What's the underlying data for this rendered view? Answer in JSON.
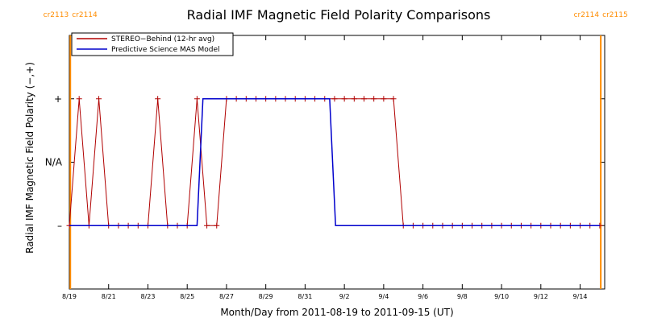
{
  "chart_data": {
    "type": "line",
    "title": "Radial IMF Magnetic Field Polarity Comparisons",
    "xlabel": "Month/Day from 2011-08-19 to 2011-09-15 (UT)",
    "ylabel": "Radial IMF Magnetic Field Polarity (−,+)",
    "xlim": [
      0,
      27.25
    ],
    "x_unit": "days from 2011-08-19 00:00 UT",
    "ylim": [
      -2,
      2
    ],
    "y_ticks": [
      {
        "value": 1,
        "label": "+"
      },
      {
        "value": 0,
        "label": "N/A"
      },
      {
        "value": -1,
        "label": "–"
      }
    ],
    "x_ticks": [
      {
        "value": 0,
        "label": "8/19"
      },
      {
        "value": 2,
        "label": "8/21"
      },
      {
        "value": 4,
        "label": "8/23"
      },
      {
        "value": 6,
        "label": "8/25"
      },
      {
        "value": 8,
        "label": "8/27"
      },
      {
        "value": 10,
        "label": "8/29"
      },
      {
        "value": 12,
        "label": "8/31"
      },
      {
        "value": 14,
        "label": "9/2"
      },
      {
        "value": 16,
        "label": "9/4"
      },
      {
        "value": 18,
        "label": "9/6"
      },
      {
        "value": 20,
        "label": "9/8"
      },
      {
        "value": 22,
        "label": "9/10"
      },
      {
        "value": 24,
        "label": "9/12"
      },
      {
        "value": 26,
        "label": "9/14"
      }
    ],
    "grid": false,
    "legend_position": "top-left",
    "series": [
      {
        "name": "STEREO−Behind (12-hr avg)",
        "color": "#b00000",
        "marker": "plus",
        "x": [
          0,
          0.5,
          1.0,
          1.5,
          2.0,
          2.5,
          3.0,
          3.5,
          4.0,
          4.5,
          5.0,
          5.5,
          6.0,
          6.5,
          7.0,
          7.5,
          8.0,
          8.5,
          9.0,
          9.5,
          10.0,
          10.5,
          11.0,
          11.5,
          12.0,
          12.5,
          13.0,
          13.5,
          14.0,
          14.5,
          15.0,
          15.5,
          16.0,
          16.5,
          17.0,
          17.5,
          18.0,
          18.5,
          19.0,
          19.5,
          20.0,
          20.5,
          21.0,
          21.5,
          22.0,
          22.5,
          23.0,
          23.5,
          24.0,
          24.5,
          25.0,
          25.5,
          26.0,
          26.5,
          27.0
        ],
        "y": [
          -1,
          1,
          -1,
          1,
          -1,
          -1,
          -1,
          -1,
          -1,
          1,
          -1,
          -1,
          -1,
          1,
          -1,
          -1,
          1,
          1,
          1,
          1,
          1,
          1,
          1,
          1,
          1,
          1,
          1,
          1,
          1,
          1,
          1,
          1,
          1,
          1,
          -1,
          -1,
          -1,
          -1,
          -1,
          -1,
          -1,
          -1,
          -1,
          -1,
          -1,
          -1,
          -1,
          -1,
          -1,
          -1,
          -1,
          -1,
          -1,
          -1,
          -1
        ]
      },
      {
        "name": "Predictive Science MAS Model",
        "color": "#0000cc",
        "marker": "none",
        "x": [
          0,
          6.5,
          6.8,
          13.25,
          13.55,
          27.0
        ],
        "y": [
          -1,
          -1,
          1,
          1,
          -1,
          -1
        ]
      }
    ],
    "vertical_markers": [
      {
        "x": 0.05,
        "label_left": "cr2113",
        "label_right": "cr2114",
        "color": "#ff8c00"
      },
      {
        "x": 27.05,
        "label_left": "cr2114",
        "label_right": "cr2115",
        "color": "#ff8c00"
      }
    ]
  }
}
